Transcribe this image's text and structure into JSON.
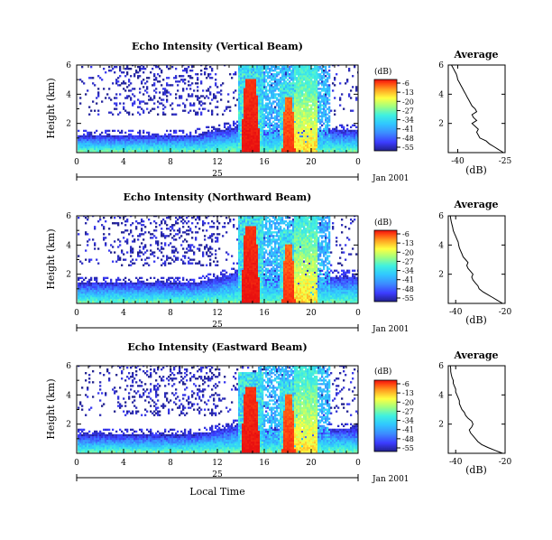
{
  "figure": {
    "xlabel": "Local Time",
    "date_label": "Jan 2001",
    "day_label": "25",
    "colorbar_unit": "(dB)",
    "colorbar_ticks": [
      "-6",
      "-13",
      "-20",
      "-27",
      "-34",
      "-41",
      "-48",
      "-55"
    ],
    "average_title": "Average",
    "average_xlabel": "(dB)",
    "colors": {
      "scale": [
        "#20208c",
        "#3c3cff",
        "#3c8cff",
        "#30c8ff",
        "#40f0e0",
        "#a0ff80",
        "#ffff40",
        "#ffa020",
        "#ff4010",
        "#e81010"
      ]
    }
  },
  "chart_data": [
    {
      "type": "heatmap",
      "title": "Echo Intensity (Vertical Beam)",
      "ylabel": "Height (km)",
      "xlabel": "",
      "xlim": [
        0,
        24
      ],
      "ylim": [
        0,
        6
      ],
      "xticks": [
        "0",
        "4",
        "8",
        "12",
        "16",
        "20",
        "0"
      ],
      "yticks": [
        "2",
        "4",
        "6"
      ],
      "colorbar": {
        "unit": "(dB)",
        "ticks": [
          "-6",
          "-13",
          "-20",
          "-27",
          "-34",
          "-41",
          "-48",
          "-55"
        ],
        "range": [
          -55,
          -6
        ]
      },
      "features": [
        {
          "name": "boundary-layer",
          "x_range": [
            0,
            24
          ],
          "height_km": [
            0,
            1.5
          ]
        },
        {
          "name": "convective-core",
          "x_range": [
            14.0,
            15.5
          ],
          "height_km": [
            0,
            5.0
          ],
          "peak_db": -6
        },
        {
          "name": "convective-core",
          "x_range": [
            17.5,
            18.5
          ],
          "height_km": [
            0,
            3.8
          ],
          "peak_db": -10
        },
        {
          "name": "precipitation",
          "x_range": [
            18.5,
            20.5
          ],
          "height_km": [
            0,
            6
          ],
          "peak_db": -20
        }
      ]
    },
    {
      "type": "line",
      "title": "Average",
      "xlabel": "(dB)",
      "xticks": [
        "-40",
        "-25"
      ],
      "xlim": [
        -43,
        -25
      ],
      "ylim": [
        0,
        6
      ],
      "yticks": [
        "2",
        "4",
        "6"
      ],
      "x": [
        -25.5,
        -27,
        -28.5,
        -30,
        -31,
        -33,
        -33.5,
        -34,
        -33.5,
        -34.5,
        -35.5,
        -34,
        -35,
        -35.5,
        -34,
        -34.5,
        -35.5,
        -36,
        -36.5,
        -37,
        -37.5,
        -38,
        -38.5,
        -39,
        -39.5,
        -40,
        -40.2,
        -40.5,
        -41,
        -41.5,
        -42
      ],
      "y": [
        0.0,
        0.2,
        0.4,
        0.6,
        0.8,
        1.0,
        1.2,
        1.4,
        1.6,
        1.8,
        2.0,
        2.2,
        2.4,
        2.6,
        2.8,
        3.0,
        3.2,
        3.4,
        3.6,
        3.8,
        4.0,
        4.2,
        4.4,
        4.6,
        4.8,
        5.0,
        5.2,
        5.4,
        5.6,
        5.8,
        6.0
      ]
    },
    {
      "type": "heatmap",
      "title": "Echo Intensity (Northward Beam)",
      "ylabel": "Height (km)",
      "xlabel": "",
      "xlim": [
        0,
        24
      ],
      "ylim": [
        0,
        6
      ],
      "xticks": [
        "0",
        "4",
        "8",
        "12",
        "16",
        "20",
        "0"
      ],
      "yticks": [
        "2",
        "4",
        "6"
      ],
      "colorbar": {
        "unit": "(dB)",
        "ticks": [
          "-6",
          "-13",
          "-20",
          "-27",
          "-34",
          "-41",
          "-48",
          "-55"
        ],
        "range": [
          -55,
          -6
        ]
      },
      "features": [
        {
          "name": "boundary-layer",
          "x_range": [
            0,
            24
          ],
          "height_km": [
            0,
            1.8
          ]
        },
        {
          "name": "convective-core",
          "x_range": [
            14.0,
            15.5
          ],
          "height_km": [
            0,
            5.2
          ],
          "peak_db": -6
        },
        {
          "name": "convective-core",
          "x_range": [
            17.5,
            18.5
          ],
          "height_km": [
            0,
            4.0
          ],
          "peak_db": -10
        },
        {
          "name": "precipitation",
          "x_range": [
            18.5,
            20.5
          ],
          "height_km": [
            0,
            6
          ],
          "peak_db": -20
        }
      ]
    },
    {
      "type": "line",
      "title": "Average",
      "xlabel": "(dB)",
      "xticks": [
        "-40",
        "-20"
      ],
      "xlim": [
        -43,
        -20
      ],
      "ylim": [
        0,
        6
      ],
      "yticks": [
        "2",
        "4",
        "6"
      ],
      "x": [
        -21,
        -23,
        -25,
        -27,
        -29,
        -30.5,
        -31,
        -32,
        -33,
        -33.5,
        -33,
        -34,
        -35,
        -35.5,
        -35,
        -36,
        -37,
        -37.5,
        -38,
        -38.5,
        -38.8,
        -39,
        -39.5,
        -40,
        -40.5,
        -41,
        -41.2,
        -41.5,
        -41.8,
        -42,
        -42.2
      ],
      "y": [
        0.0,
        0.2,
        0.4,
        0.6,
        0.8,
        1.0,
        1.2,
        1.4,
        1.6,
        1.8,
        2.0,
        2.2,
        2.4,
        2.6,
        2.8,
        3.0,
        3.2,
        3.4,
        3.6,
        3.8,
        4.0,
        4.2,
        4.4,
        4.6,
        4.8,
        5.0,
        5.2,
        5.4,
        5.6,
        5.8,
        6.0
      ]
    },
    {
      "type": "heatmap",
      "title": "Echo Intensity (Eastward Beam)",
      "ylabel": "Height (km)",
      "xlabel": "Local Time",
      "xlim": [
        0,
        24
      ],
      "ylim": [
        0,
        6
      ],
      "xticks": [
        "0",
        "4",
        "8",
        "12",
        "16",
        "20",
        "0"
      ],
      "yticks": [
        "2",
        "4",
        "6"
      ],
      "colorbar": {
        "unit": "(dB)",
        "ticks": [
          "-6",
          "-13",
          "-20",
          "-27",
          "-34",
          "-41",
          "-48",
          "-55"
        ],
        "range": [
          -55,
          -6
        ]
      },
      "features": [
        {
          "name": "boundary-layer",
          "x_range": [
            0,
            24
          ],
          "height_km": [
            0,
            1.6
          ]
        },
        {
          "name": "convective-core",
          "x_range": [
            14.0,
            15.5
          ],
          "height_km": [
            0,
            4.5
          ],
          "peak_db": -6
        },
        {
          "name": "convective-core",
          "x_range": [
            17.5,
            18.5
          ],
          "height_km": [
            0,
            4.0
          ],
          "peak_db": -10
        },
        {
          "name": "precipitation",
          "x_range": [
            18.5,
            20.5
          ],
          "height_km": [
            0,
            6
          ],
          "peak_db": -20
        }
      ]
    },
    {
      "type": "line",
      "title": "Average",
      "xlabel": "(dB)",
      "xticks": [
        "-40",
        "-20"
      ],
      "xlim": [
        -43,
        -20
      ],
      "ylim": [
        0,
        6
      ],
      "yticks": [
        "2",
        "4",
        "6"
      ],
      "x": [
        -21,
        -24,
        -27,
        -29.5,
        -31,
        -32,
        -33,
        -34,
        -34.5,
        -33.5,
        -33,
        -33.5,
        -35,
        -36,
        -36.5,
        -37.5,
        -38,
        -38.5,
        -38.5,
        -39,
        -39.5,
        -40,
        -40,
        -40.5,
        -41,
        -41,
        -41.5,
        -41.8,
        -42,
        -42,
        -42.2
      ],
      "y": [
        0.0,
        0.2,
        0.4,
        0.6,
        0.8,
        1.0,
        1.2,
        1.4,
        1.6,
        1.8,
        2.0,
        2.2,
        2.4,
        2.6,
        2.8,
        3.0,
        3.2,
        3.4,
        3.6,
        3.8,
        4.0,
        4.2,
        4.4,
        4.6,
        4.8,
        5.0,
        5.2,
        5.4,
        5.6,
        5.8,
        6.0
      ]
    }
  ]
}
